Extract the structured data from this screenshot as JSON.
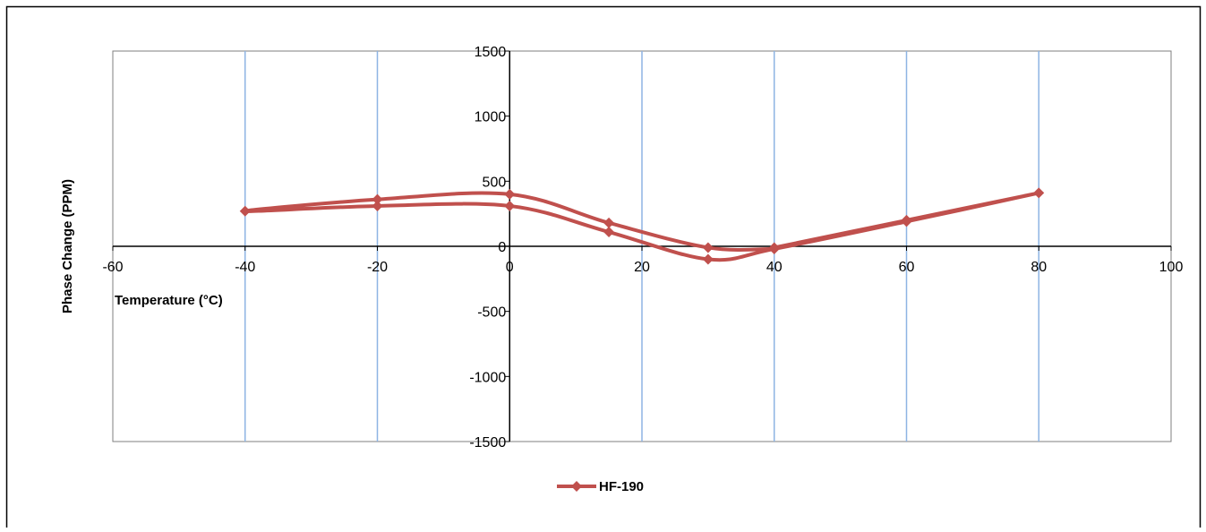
{
  "chart_data": {
    "type": "line",
    "title": "",
    "xlabel": "Temperature (°C)",
    "ylabel": "Phase Change (PPM)",
    "xlim": [
      -60,
      100
    ],
    "ylim": [
      -1500,
      1500
    ],
    "x_ticks": [
      -60,
      -40,
      -20,
      0,
      20,
      40,
      60,
      80,
      100
    ],
    "y_ticks": [
      -1500,
      -1000,
      -500,
      0,
      500,
      1000,
      1500
    ],
    "grid": "vertical",
    "legend": "bottom",
    "series": [
      {
        "name": "HF-190",
        "color": "#C0504D",
        "marker": "diamond",
        "smooth": true,
        "x": [
          40,
          60,
          80,
          60,
          40,
          30,
          15,
          0,
          -20,
          -40,
          -20,
          0,
          15,
          30,
          40
        ],
        "y": [
          -10,
          200,
          410,
          190,
          -20,
          -100,
          110,
          310,
          310,
          270,
          360,
          400,
          180,
          -10,
          -20
        ]
      }
    ],
    "colors": {
      "gridline": "#8EB4E3",
      "plot_border": "#7F7F7F",
      "axis": "#000000"
    }
  }
}
